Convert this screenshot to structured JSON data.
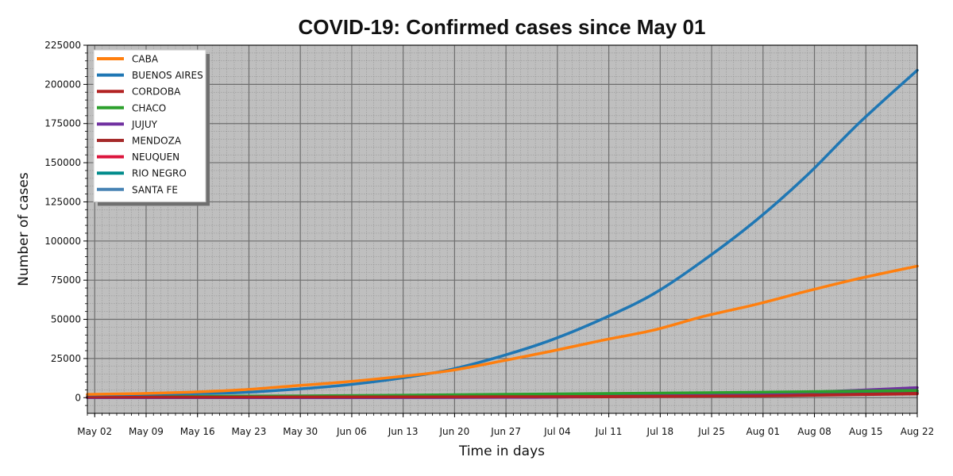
{
  "chart_data": {
    "type": "line",
    "title": "COVID-19: Confirmed cases since May 01",
    "xlabel": "Time in days",
    "ylabel": "Number of cases",
    "x_start": "May 01",
    "x_end": "Aug 22",
    "xticks": [
      {
        "date": "May 02",
        "label": "May 02"
      },
      {
        "date": "May 09",
        "label": "May 09"
      },
      {
        "date": "May 16",
        "label": "May 16"
      },
      {
        "date": "May 23",
        "label": "May 23"
      },
      {
        "date": "May 30",
        "label": "May 30"
      },
      {
        "date": "Jun 06",
        "label": "Jun 06"
      },
      {
        "date": "Jun 13",
        "label": "Jun 13"
      },
      {
        "date": "Jun 20",
        "label": "Jun 20"
      },
      {
        "date": "Jun 27",
        "label": "Jun 27"
      },
      {
        "date": "Jul 04",
        "label": "Jul 04"
      },
      {
        "date": "Jul 11",
        "label": "Jul 11"
      },
      {
        "date": "Jul 18",
        "label": "Jul 18"
      },
      {
        "date": "Jul 25",
        "label": "Jul 25"
      },
      {
        "date": "Aug 01",
        "label": "Aug 01"
      },
      {
        "date": "Aug 08",
        "label": "Aug 08"
      },
      {
        "date": "Aug 15",
        "label": "Aug 15"
      },
      {
        "date": "Aug 22",
        "label": "Aug 22"
      }
    ],
    "yticks": [
      0,
      25000,
      50000,
      75000,
      100000,
      125000,
      150000,
      175000,
      200000,
      225000
    ],
    "ylim": [
      -10000,
      225000
    ],
    "grid": true,
    "legend_position": "top-left",
    "plot_background": "#bfbfbf",
    "series": [
      {
        "name": "CABA",
        "color": "#ff7f0e",
        "x": [
          "May 01",
          "May 08",
          "May 15",
          "May 22",
          "May 29",
          "Jun 05",
          "Jun 12",
          "Jun 19",
          "Jun 26",
          "Jul 03",
          "Jul 10",
          "Jul 17",
          "Jul 24",
          "Jul 31",
          "Aug 07",
          "Aug 14",
          "Aug 22"
        ],
        "y": [
          2100,
          2600,
          3500,
          5000,
          7500,
          10000,
          13200,
          17000,
          23000,
          29500,
          36500,
          43000,
          52000,
          59500,
          68000,
          76000,
          84000
        ]
      },
      {
        "name": "BUENOS AIRES",
        "color": "#1f77b4",
        "x": [
          "May 01",
          "May 08",
          "May 15",
          "May 22",
          "May 29",
          "Jun 05",
          "Jun 12",
          "Jun 19",
          "Jun 26",
          "Jul 03",
          "Jul 10",
          "Jul 17",
          "Jul 24",
          "Jul 31",
          "Aug 07",
          "Aug 14",
          "Aug 22"
        ],
        "y": [
          1800,
          2100,
          2600,
          3300,
          5300,
          8000,
          12000,
          17500,
          26000,
          36500,
          50000,
          66000,
          88000,
          113000,
          142000,
          175000,
          209000
        ]
      },
      {
        "name": "CORDOBA",
        "color": "#b22222",
        "x": [
          "May 01",
          "Jun 01",
          "Jul 01",
          "Aug 01",
          "Aug 22"
        ],
        "y": [
          350,
          450,
          650,
          1100,
          2400
        ]
      },
      {
        "name": "CHACO",
        "color": "#2ca02c",
        "x": [
          "May 01",
          "Jun 01",
          "Jul 01",
          "Aug 01",
          "Aug 22"
        ],
        "y": [
          600,
          1200,
          2300,
          3500,
          4600
        ]
      },
      {
        "name": "JUJUY",
        "color": "#7030a0",
        "x": [
          "May 01",
          "Jun 01",
          "Jul 01",
          "Jul 25",
          "Aug 08",
          "Aug 22"
        ],
        "y": [
          10,
          20,
          200,
          1800,
          3600,
          6400
        ]
      },
      {
        "name": "MENDOZA",
        "color": "#a52a2a",
        "x": [
          "May 01",
          "Jun 01",
          "Jul 01",
          "Aug 01",
          "Aug 22"
        ],
        "y": [
          80,
          120,
          300,
          1200,
          2800
        ]
      },
      {
        "name": "NEUQUEN",
        "color": "#dc143c",
        "x": [
          "May 01",
          "Jun 01",
          "Jul 01",
          "Aug 01",
          "Aug 22"
        ],
        "y": [
          120,
          180,
          500,
          1300,
          2600
        ]
      },
      {
        "name": "RIO NEGRO",
        "color": "#008b8b",
        "x": [
          "May 01",
          "Jun 01",
          "Jul 01",
          "Aug 01",
          "Aug 22"
        ],
        "y": [
          300,
          500,
          900,
          1700,
          3400
        ]
      },
      {
        "name": "SANTA FE",
        "color": "#4682b4",
        "x": [
          "May 01",
          "Jun 01",
          "Jul 01",
          "Aug 01",
          "Aug 22"
        ],
        "y": [
          250,
          320,
          450,
          1200,
          4200
        ]
      }
    ]
  }
}
